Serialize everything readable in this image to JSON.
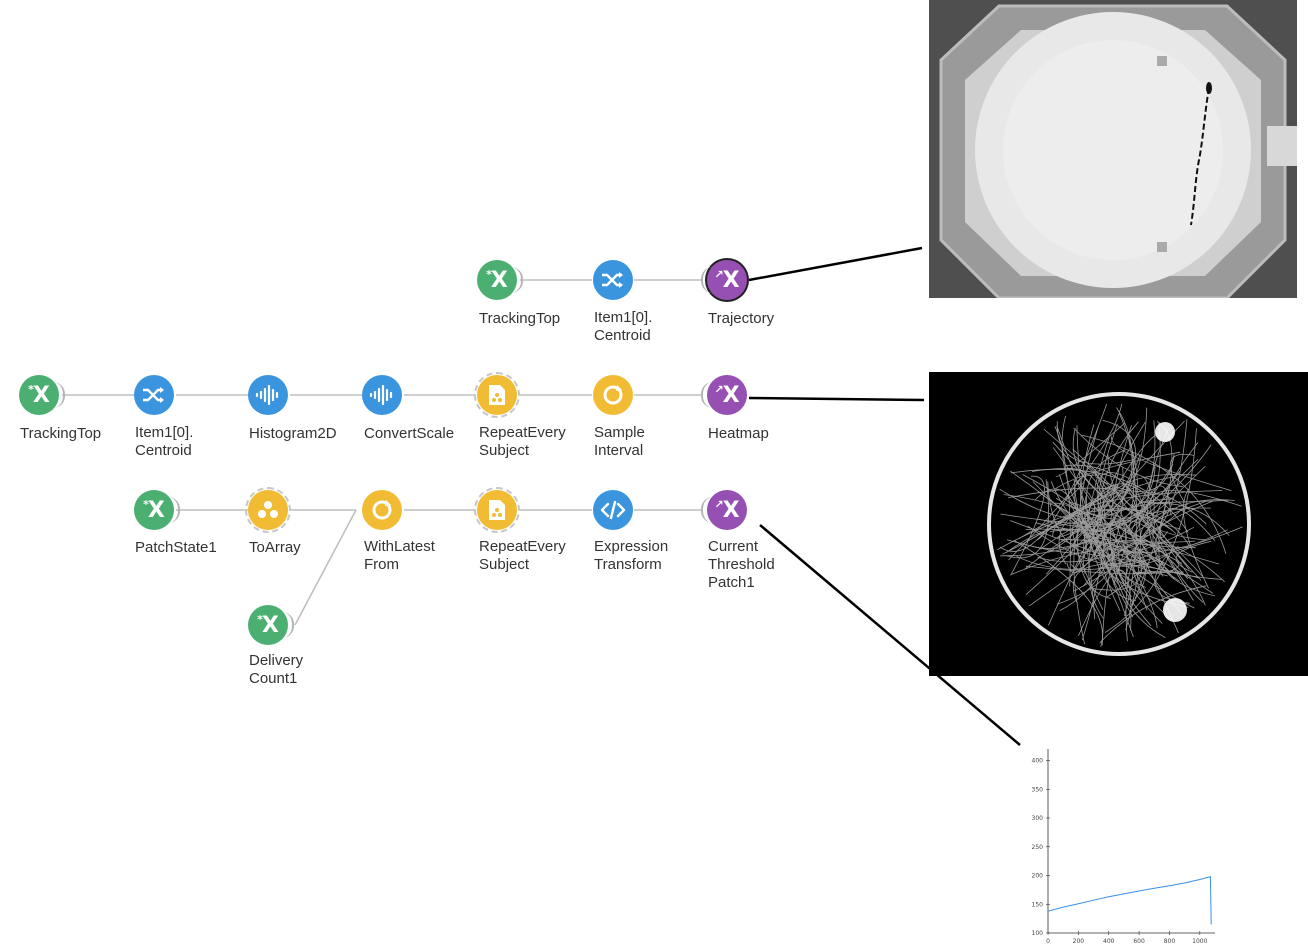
{
  "nodes": {
    "trackingtop_a": {
      "label": "TrackingTop",
      "icon": "source-subject-icon"
    },
    "item_centroid_a": {
      "label": "Item1[0].\nCentroid",
      "icon": "shuffle-icon"
    },
    "trajectory": {
      "label": "Trajectory",
      "icon": "visualizer-subject-icon"
    },
    "trackingtop_b": {
      "label": "TrackingTop",
      "icon": "source-subject-icon"
    },
    "item_centroid_b": {
      "label": "Item1[0].\nCentroid",
      "icon": "shuffle-icon"
    },
    "histogram2d": {
      "label": "Histogram2D",
      "icon": "waveform-icon"
    },
    "convertscale": {
      "label": "ConvertScale",
      "icon": "waveform-icon"
    },
    "repeat_every_a": {
      "label": "RepeatEvery\nSubject",
      "icon": "document-icon"
    },
    "sample_interval": {
      "label": "Sample\nInterval",
      "icon": "cycle-icon"
    },
    "heatmap": {
      "label": "Heatmap",
      "icon": "visualizer-subject-icon"
    },
    "patchstate1": {
      "label": "PatchState1",
      "icon": "source-subject-icon"
    },
    "toarray": {
      "label": "ToArray",
      "icon": "dots-icon"
    },
    "withlatestfrom": {
      "label": "WithLatest\nFrom",
      "icon": "cycle-icon"
    },
    "repeat_every_b": {
      "label": "RepeatEvery\nSubject",
      "icon": "document-icon"
    },
    "expression_transform": {
      "label": "Expression\nTransform",
      "icon": "code-icon"
    },
    "current_threshold": {
      "label": "Current\nThreshold\nPatch1",
      "icon": "visualizer-subject-icon"
    },
    "delivery_count1": {
      "label": "Delivery\nCount1",
      "icon": "source-subject-icon"
    }
  },
  "glyphs": {
    "subject": "X",
    "source_prefix": "*",
    "visualizer_prefix": "↗"
  },
  "colors": {
    "source": "#4caf72",
    "transform": "#3a95de",
    "combinator": "#f1bc33",
    "sink": "#9650b4"
  },
  "chart_data": {
    "type": "line",
    "title": "",
    "xlabel": "",
    "ylabel": "",
    "xlim": [
      0,
      1100
    ],
    "ylim": [
      100,
      420
    ],
    "xticks": [
      0,
      200,
      400,
      600,
      800,
      1000
    ],
    "yticks": [
      100,
      150,
      200,
      250,
      300,
      350,
      400
    ],
    "series": [
      {
        "x": [
          0,
          100,
          200,
          300,
          400,
          500,
          600,
          700,
          800,
          900,
          1000,
          1070,
          1075
        ],
        "y": [
          138,
          145,
          151,
          157,
          163,
          168,
          173,
          178,
          182,
          187,
          193,
          198,
          115
        ]
      }
    ],
    "grid": false,
    "color": "#3a8ee6"
  }
}
